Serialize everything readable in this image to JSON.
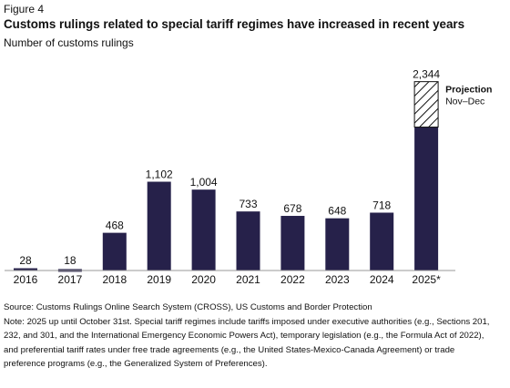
{
  "figure_label": "Figure 4",
  "title": "Customs rulings related to special tariff regimes have increased in recent years",
  "subtitle": "Number of customs rulings",
  "chart_data": {
    "type": "bar",
    "categories": [
      "2016",
      "2017",
      "2018",
      "2019",
      "2020",
      "2021",
      "2022",
      "2023",
      "2024",
      "2025*"
    ],
    "values": [
      28,
      18,
      468,
      1102,
      1004,
      733,
      678,
      648,
      718,
      2344
    ],
    "value_labels": [
      "28",
      "18",
      "468",
      "1,102",
      "1,004",
      "733",
      "678",
      "648",
      "718",
      "2,344"
    ],
    "projection": {
      "category": "2025*",
      "actual_value": 1780,
      "total_value": 2344,
      "label": "Projection",
      "sublabel": "Nov–Dec"
    },
    "ylim": [
      0,
      2600
    ],
    "grid": false,
    "bar_color": "#26214a",
    "xlabel": "",
    "ylabel": ""
  },
  "notes": {
    "source": "Source: Customs Rulings Online Search System (CROSS), US Customs and Border Protection",
    "note": "Note: 2025 up until October 31st. Special tariff regimes include tariffs imposed under executive authorities (e.g., Sections 201, 232, and 301, and the International Emergency Economic Powers Act), temporary legislation (e.g., the Formula Act of 2022), and preferential tariff rates under free trade agreements (e.g., the United States-Mexico-Canada Agreement) or trade preference programs (e.g., the Generalized System of Preferences)."
  }
}
